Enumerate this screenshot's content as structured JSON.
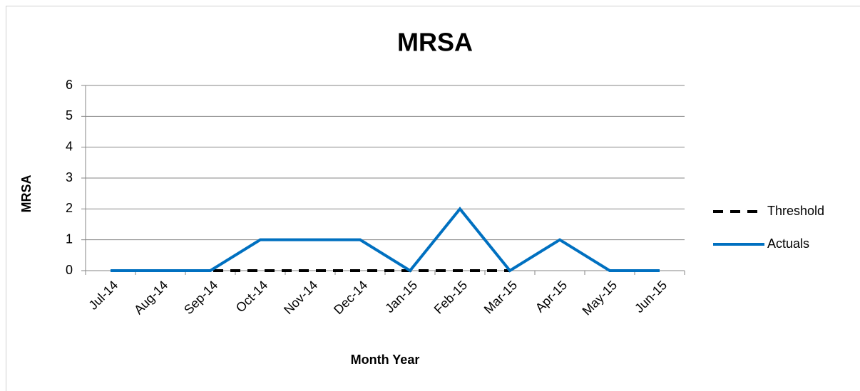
{
  "chart_data": {
    "type": "line",
    "title": "MRSA",
    "x_label": "Month Year",
    "y_label": "MRSA",
    "categories": [
      "Jul-14",
      "Aug-14",
      "Sep-14",
      "Oct-14",
      "Nov-14",
      "Dec-14",
      "Jan-15",
      "Feb-15",
      "Mar-15",
      "Apr-15",
      "May-15",
      "Jun-15"
    ],
    "series": [
      {
        "name": "Threshold",
        "color": "#000000",
        "dashed": true,
        "values": [
          0,
          0,
          0,
          0,
          0,
          0,
          0,
          0,
          0,
          null,
          null,
          null
        ]
      },
      {
        "name": "Actuals",
        "color": "#0070c0",
        "dashed": false,
        "values": [
          0,
          0,
          0,
          1,
          1,
          1,
          0,
          2,
          0,
          1,
          0,
          0
        ]
      }
    ],
    "ylim": [
      0,
      6
    ],
    "yticks": [
      0,
      1,
      2,
      3,
      4,
      5,
      6
    ],
    "grid": true,
    "legend": "right"
  }
}
